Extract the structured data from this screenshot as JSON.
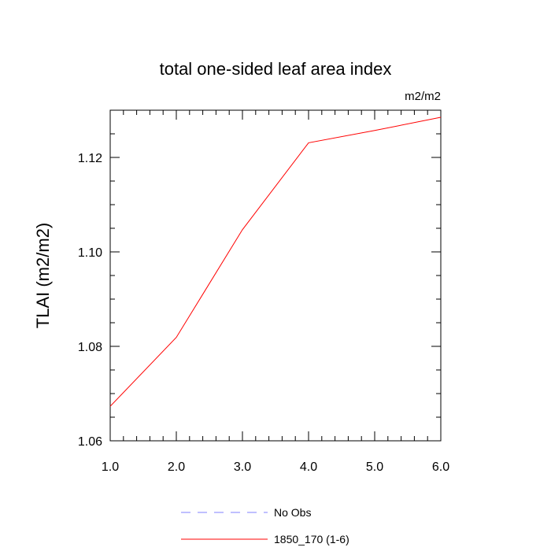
{
  "chart_data": {
    "type": "line",
    "title": "total one-sided leaf area index",
    "units_label": "m2/m2",
    "xlabel": "",
    "ylabel": "TLAI  (m2/m2)",
    "xlim": [
      1.0,
      6.0
    ],
    "ylim": [
      1.06,
      1.13
    ],
    "x_ticks": [
      1.0,
      2.0,
      3.0,
      4.0,
      5.0,
      6.0
    ],
    "x_tick_labels": [
      "1.0",
      "2.0",
      "3.0",
      "4.0",
      "5.0",
      "6.0"
    ],
    "y_ticks": [
      1.06,
      1.08,
      1.1,
      1.12
    ],
    "y_tick_labels": [
      "1.06",
      "1.08",
      "1.10",
      "1.12"
    ],
    "grid": false,
    "legend_position": "bottom",
    "series": [
      {
        "name": "1850_170 (1-6)",
        "color": "#ff0000",
        "dash": "solid",
        "x": [
          1.0,
          2.0,
          3.0,
          4.0,
          5.0,
          6.0
        ],
        "y": [
          1.0673,
          1.0819,
          1.1047,
          1.1231,
          1.1257,
          1.1285
        ]
      }
    ],
    "legend": [
      {
        "label": "No Obs",
        "color": "#8080ff",
        "dash": "dashed"
      },
      {
        "label": "1850_170 (1-6)",
        "color": "#ff0000",
        "dash": "solid"
      }
    ]
  }
}
